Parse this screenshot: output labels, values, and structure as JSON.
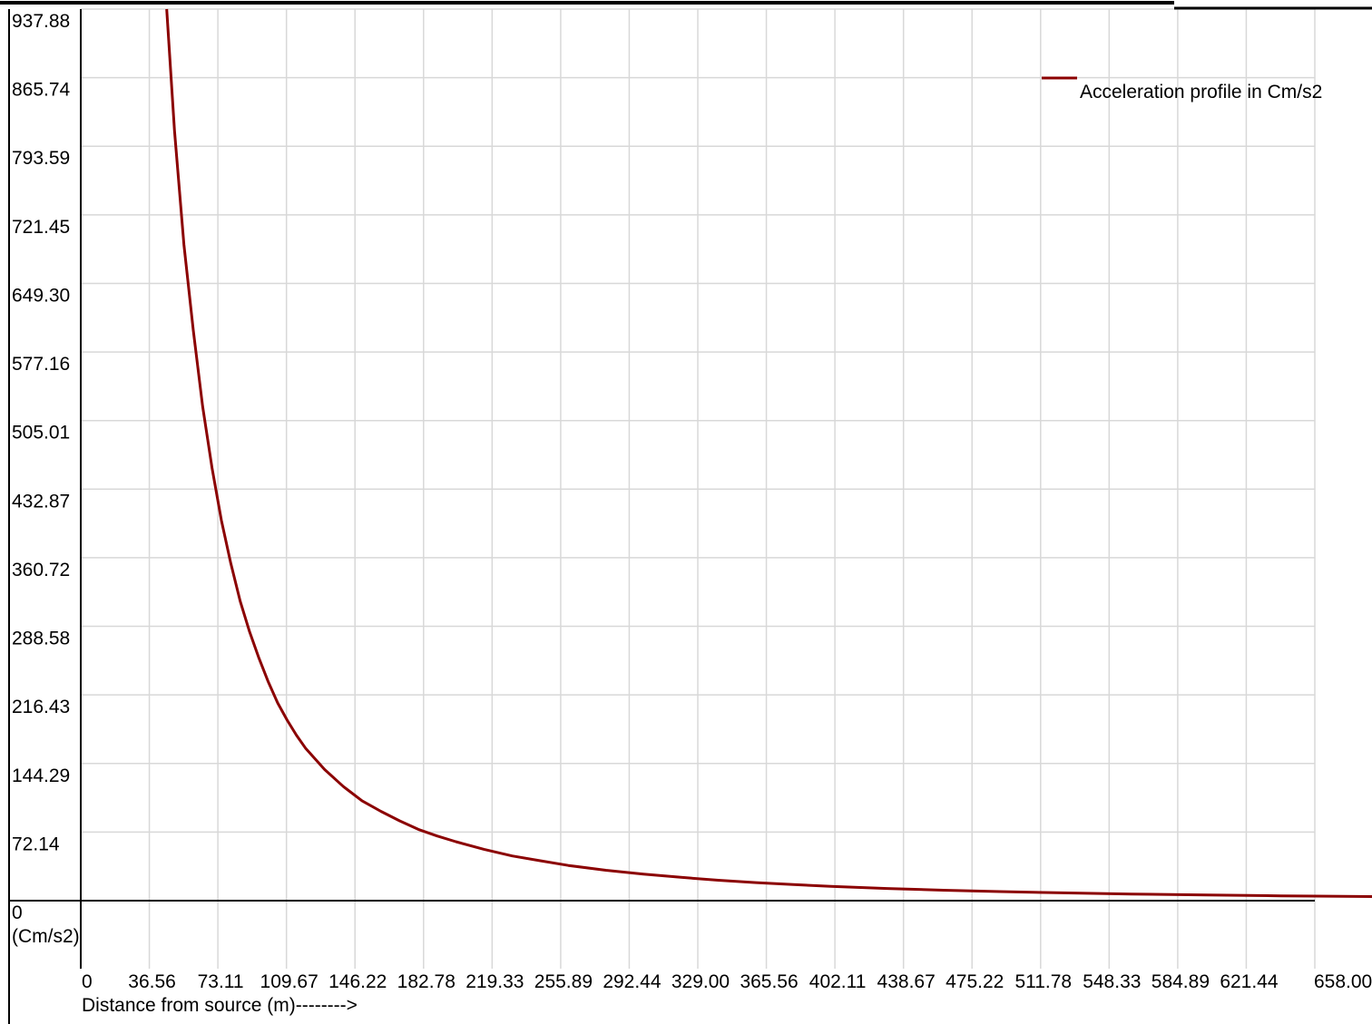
{
  "colors": {
    "series": "#8b0000",
    "grid": "#d8d8d8",
    "axis": "#000000",
    "background": "#ffffff"
  },
  "chart_data": {
    "type": "line",
    "title": "",
    "xlabel": "Distance from source (m)-------->",
    "ylabel": "(Cm/s2)",
    "xlim": [
      0,
      658.0
    ],
    "ylim": [
      0,
      937.88
    ],
    "grid": true,
    "legend_position": "top-right",
    "x_ticks": [
      "0",
      "36.56",
      "73.11",
      "109.67",
      "146.22",
      "182.78",
      "219.33",
      "255.89",
      "292.44",
      "329.00",
      "365.56",
      "402.11",
      "438.67",
      "475.22",
      "511.78",
      "548.33",
      "584.89",
      "621.44",
      "658.00"
    ],
    "y_ticks": [
      "0",
      "72.14",
      "144.29",
      "216.43",
      "288.58",
      "360.72",
      "432.87",
      "505.01",
      "577.16",
      "649.30",
      "721.45",
      "793.59",
      "865.74",
      "937.88"
    ],
    "series": [
      {
        "name": "Acceleration profile in Cm/s2",
        "x": [
          45.8,
          50,
          55,
          60,
          65,
          70,
          75,
          80,
          85,
          90,
          95,
          100,
          105,
          110,
          115,
          120,
          130,
          140,
          150,
          160,
          170,
          180,
          190,
          200,
          215,
          230,
          245,
          260,
          280,
          300,
          320,
          340,
          360,
          380,
          400,
          430,
          460,
          490,
          520,
          560,
          600,
          640,
          658,
          690
        ],
        "y": [
          937.88,
          810,
          690,
          600,
          520,
          455,
          400,
          355,
          315,
          283,
          255,
          230,
          208,
          190,
          174,
          160,
          138,
          120,
          105,
          94,
          84,
          75,
          68,
          62,
          54,
          47,
          42,
          37,
          32,
          28,
          24.5,
          21.5,
          19,
          17,
          15,
          12.8,
          11,
          9.5,
          8.3,
          7,
          6,
          5.1,
          4.8,
          4.3
        ]
      }
    ]
  }
}
